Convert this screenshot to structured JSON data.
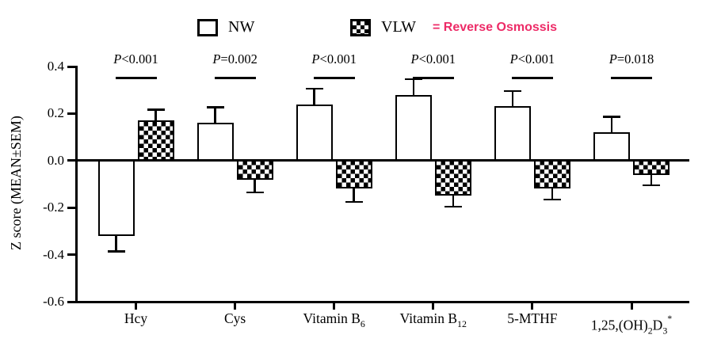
{
  "chart_data": {
    "type": "bar",
    "title": "",
    "xlabel": "",
    "ylabel": "Z score (MEAN±SEM)",
    "ylim": [
      -0.6,
      0.4
    ],
    "yticks": [
      "0.4",
      "0.2",
      "0.0",
      "-0.2",
      "-0.4",
      "-0.6"
    ],
    "grid": false,
    "legend_position": "top",
    "categories": [
      {
        "text": "Hcy",
        "parts": [
          {
            "t": "Hcy"
          }
        ]
      },
      {
        "text": "Cys",
        "parts": [
          {
            "t": "Cys"
          }
        ]
      },
      {
        "text": "Vitamin B6",
        "parts": [
          {
            "t": "Vitamin B"
          },
          {
            "t": "6",
            "pos": "sub"
          }
        ]
      },
      {
        "text": "Vitamin B12",
        "parts": [
          {
            "t": "Vitamin B"
          },
          {
            "t": "12",
            "pos": "sub"
          }
        ]
      },
      {
        "text": "5-MTHF",
        "parts": [
          {
            "t": "5-MTHF"
          }
        ]
      },
      {
        "text": "1,25,(OH)2D3*",
        "parts": [
          {
            "t": "1,25,(OH)"
          },
          {
            "t": "2",
            "pos": "sub"
          },
          {
            "t": "D"
          },
          {
            "t": "3",
            "pos": "sub"
          },
          {
            "t": "*",
            "pos": "sup"
          }
        ]
      }
    ],
    "series": [
      {
        "name": "NW",
        "fill": "open",
        "values": [
          -0.32,
          0.16,
          0.24,
          0.28,
          0.23,
          0.12
        ],
        "sem": [
          0.07,
          0.07,
          0.07,
          0.07,
          0.07,
          0.07
        ]
      },
      {
        "name": "VLW",
        "fill": "checker",
        "values": [
          0.17,
          -0.08,
          -0.12,
          -0.15,
          -0.12,
          -0.06
        ],
        "sem": [
          0.05,
          0.06,
          0.06,
          0.05,
          0.05,
          0.05
        ]
      }
    ],
    "p_values": [
      "P<0.001",
      "P=0.002",
      "P<0.001",
      "P<0.001",
      "P<0.001",
      "P=0.018"
    ],
    "legend": {
      "items": [
        {
          "label": "NW",
          "swatch": "open"
        },
        {
          "label": "VLW",
          "swatch": "checker"
        }
      ],
      "annotation": "= Reverse Osmossis",
      "annotation_color": "#ED2B67"
    }
  }
}
